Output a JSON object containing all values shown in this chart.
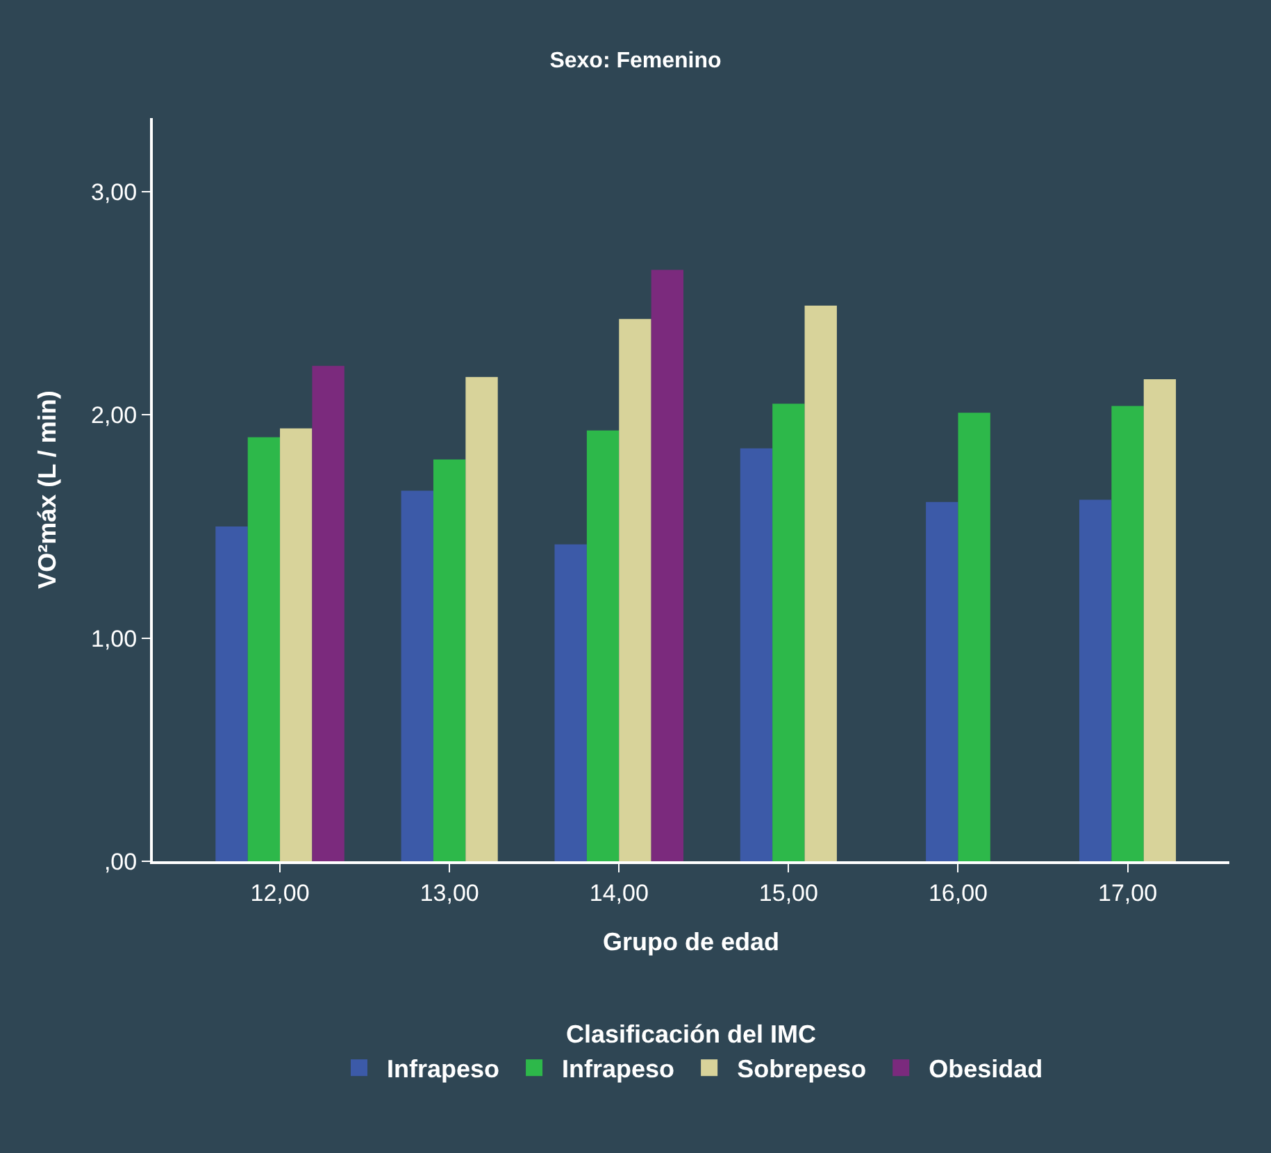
{
  "chart_data": {
    "type": "bar",
    "title": "Sexo: Femenino",
    "xlabel": "Grupo de edad",
    "ylabel": "VO²máx (L / min)",
    "legend_title": "Clasificación del IMC",
    "categories": [
      "12,00",
      "13,00",
      "14,00",
      "15,00",
      "16,00",
      "17,00"
    ],
    "series": [
      {
        "name": "Infrapeso",
        "color": "#3c5aa8",
        "values": [
          1.5,
          1.66,
          1.42,
          1.85,
          1.61,
          1.62
        ]
      },
      {
        "name": "Infrapeso",
        "color": "#2db84a",
        "values": [
          1.9,
          1.8,
          1.93,
          2.05,
          2.01,
          2.04
        ]
      },
      {
        "name": "Sobrepeso",
        "color": "#d8d39a",
        "values": [
          1.94,
          2.17,
          2.43,
          2.49,
          null,
          2.16
        ]
      },
      {
        "name": "Obesidad",
        "color": "#7b2a7d",
        "values": [
          2.22,
          null,
          2.65,
          null,
          null,
          null
        ]
      }
    ],
    "ylim": [
      0,
      3.33
    ],
    "yticks": [
      {
        "value": 0,
        "label": ",00"
      },
      {
        "value": 1,
        "label": "1,00"
      },
      {
        "value": 2,
        "label": "2,00"
      },
      {
        "value": 3,
        "label": "3,00"
      }
    ],
    "grid": false,
    "legend": "bottom"
  }
}
